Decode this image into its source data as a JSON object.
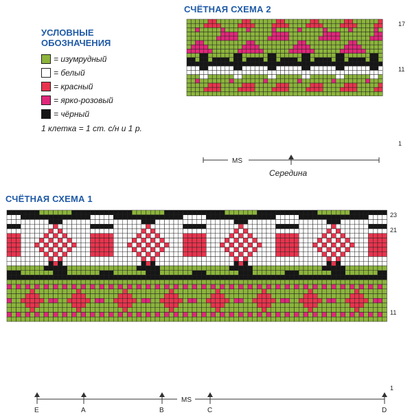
{
  "scheme2": {
    "title": "СЧЁТНАЯ СХЕМА 2",
    "row_labels": [
      "17",
      "11",
      "1"
    ],
    "center_caption": "Середина",
    "ms_label": "MS"
  },
  "scheme1": {
    "title": "СЧЁТНАЯ СХЕМА 1",
    "row_labels": [
      "23",
      "21",
      "11",
      "1"
    ],
    "ms_label": "MS",
    "markers": [
      "E",
      "A",
      "B",
      "C",
      "D"
    ]
  },
  "legend": {
    "title_line1": "УСЛОВНЫЕ",
    "title_line2": "ОБОЗНАЧЕНИЯ",
    "items": [
      {
        "label": "= изумрудный",
        "color": "#8cb43c"
      },
      {
        "label": "= белый",
        "color": "#ffffff"
      },
      {
        "label": "= красный",
        "color": "#e8344e"
      },
      {
        "label": "= ярко-розовый",
        "color": "#e0287a"
      },
      {
        "label": "= чёрный",
        "color": "#161616"
      }
    ],
    "note": "1 клетка = 1 ст. с/н и 1 р."
  },
  "colors": {
    "emerald": "#8cb43c",
    "white": "#ffffff",
    "red": "#e8344e",
    "pink": "#e0287a",
    "black": "#161616",
    "title_blue": "#1f5aa6"
  }
}
